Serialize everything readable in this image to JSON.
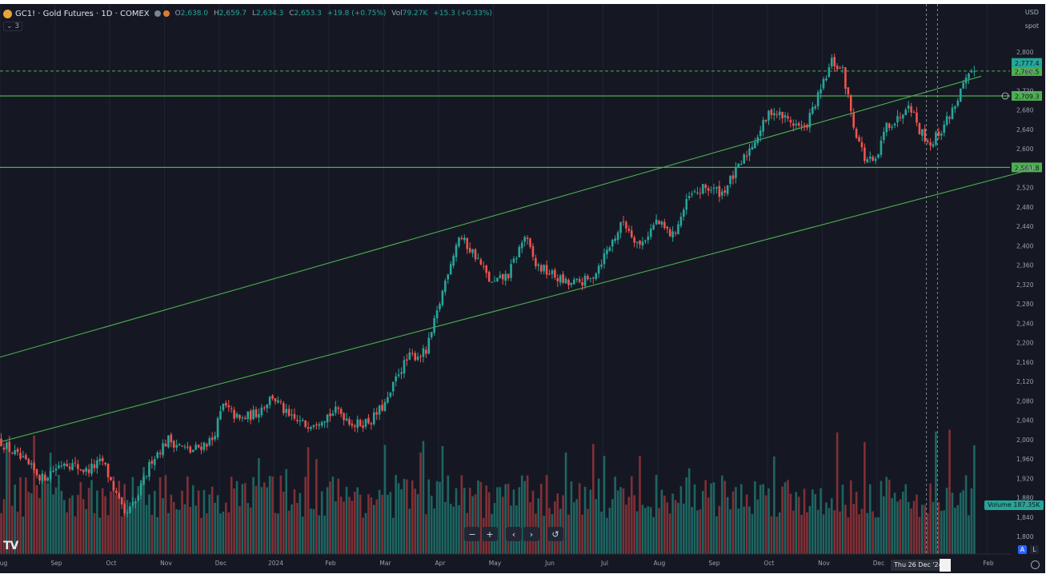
{
  "header": {
    "symbol": "GC1!",
    "title": "GC1! · Gold Futures · 1D · COMEX",
    "ohlc": {
      "o_label": "O",
      "o": "2,638.0",
      "h_label": "H",
      "h": "2,659.7",
      "l_label": "L",
      "l": "2,634.3",
      "c_label": "C",
      "c": "2,653.3",
      "chg": "+19.8 (+0.75%)",
      "vol_label": "Vol",
      "vol": "79.27K",
      "vol_chg": "+15.3 (+0.33%)"
    },
    "indicator_count": "3",
    "currency": "USD",
    "data_source": "spot"
  },
  "colors": {
    "bg": "#151823",
    "up": "#26a69a",
    "down": "#ef5350",
    "vol_up": "#1f6e68",
    "vol_down": "#8c3338",
    "trend": "#4caf50",
    "hline": "#4caf50",
    "axis_text": "#9aa0ad",
    "grid": "#1f2331"
  },
  "chart_data": {
    "type": "candlestick",
    "instrument": "Gold Futures",
    "timeframe": "1D",
    "ylim": [
      1780,
      2830
    ],
    "y_ticks": [
      1800,
      1840,
      1880,
      1920,
      1960,
      2000,
      2040,
      2080,
      2120,
      2160,
      2200,
      2240,
      2280,
      2320,
      2360,
      2400,
      2440,
      2480,
      2520,
      2560,
      2600,
      2640,
      2680,
      2720,
      2760,
      2800
    ],
    "x_ticks": [
      "Aug",
      "Sep",
      "Oct",
      "Nov",
      "Dec",
      "2024",
      "Feb",
      "Mar",
      "Apr",
      "May",
      "Jun",
      "Jul",
      "Aug",
      "Sep",
      "Oct",
      "Nov",
      "Dec",
      "Feb"
    ],
    "x_range_months": [
      0,
      18
    ],
    "x_tick_positions_months": [
      0,
      1,
      2,
      3,
      4,
      5,
      6,
      7,
      8,
      9,
      10,
      11,
      12,
      13,
      14,
      15,
      16,
      18
    ],
    "price_path": [
      [
        0.0,
        2000
      ],
      [
        0.3,
        1970
      ],
      [
        0.8,
        1920
      ],
      [
        1.2,
        1955
      ],
      [
        1.6,
        1935
      ],
      [
        1.9,
        1955
      ],
      [
        2.1,
        1900
      ],
      [
        2.3,
        1840
      ],
      [
        2.5,
        1870
      ],
      [
        2.8,
        1960
      ],
      [
        3.1,
        2000
      ],
      [
        3.5,
        1975
      ],
      [
        3.9,
        2000
      ],
      [
        4.1,
        2070
      ],
      [
        4.4,
        2040
      ],
      [
        4.7,
        2055
      ],
      [
        5.0,
        2090
      ],
      [
        5.3,
        2045
      ],
      [
        5.6,
        2030
      ],
      [
        5.9,
        2045
      ],
      [
        6.2,
        2060
      ],
      [
        6.5,
        2030
      ],
      [
        6.8,
        2040
      ],
      [
        7.1,
        2080
      ],
      [
        7.3,
        2140
      ],
      [
        7.5,
        2170
      ],
      [
        7.8,
        2180
      ],
      [
        8.0,
        2260
      ],
      [
        8.2,
        2350
      ],
      [
        8.4,
        2420
      ],
      [
        8.7,
        2380
      ],
      [
        9.0,
        2320
      ],
      [
        9.3,
        2340
      ],
      [
        9.6,
        2420
      ],
      [
        9.8,
        2360
      ],
      [
        10.1,
        2340
      ],
      [
        10.4,
        2320
      ],
      [
        10.8,
        2330
      ],
      [
        11.1,
        2390
      ],
      [
        11.4,
        2450
      ],
      [
        11.7,
        2400
      ],
      [
        12.0,
        2450
      ],
      [
        12.3,
        2420
      ],
      [
        12.6,
        2500
      ],
      [
        12.9,
        2520
      ],
      [
        13.2,
        2510
      ],
      [
        13.5,
        2560
      ],
      [
        13.8,
        2620
      ],
      [
        14.1,
        2680
      ],
      [
        14.4,
        2660
      ],
      [
        14.7,
        2640
      ],
      [
        15.0,
        2720
      ],
      [
        15.2,
        2780
      ],
      [
        15.4,
        2760
      ],
      [
        15.6,
        2650
      ],
      [
        15.8,
        2580
      ],
      [
        16.0,
        2570
      ],
      [
        16.2,
        2650
      ],
      [
        16.4,
        2660
      ],
      [
        16.6,
        2700
      ],
      [
        16.8,
        2640
      ],
      [
        17.0,
        2610
      ],
      [
        17.2,
        2640
      ],
      [
        17.4,
        2680
      ],
      [
        17.6,
        2730
      ],
      [
        17.8,
        2760
      ]
    ],
    "channel_upper": [
      [
        0.0,
        2170
      ],
      [
        17.9,
        2750
      ]
    ],
    "channel_lower": [
      [
        0.0,
        1995
      ],
      [
        18.9,
        2560
      ]
    ],
    "horizontal_levels": [
      {
        "price": 2760.5,
        "label": "2,760.5",
        "style": "dashed"
      },
      {
        "price": 2709.3,
        "label": "2,709.3",
        "style": "solid"
      },
      {
        "price": 2561.8,
        "label": "2,561.8",
        "style": "solid"
      }
    ],
    "last_price_label": "2,777.4",
    "last_price": 2777.4,
    "volume_label": "Volume",
    "volume_value": "187.35K",
    "crosshair_x_month": 16.9,
    "crosshair_x2_month": 17.1,
    "crosshair_date_label": "Thu 26 Dec '24"
  },
  "controls": {
    "zoom_out": "−",
    "zoom_in": "+",
    "scroll_left": "‹",
    "scroll_right": "›",
    "reset": "↺"
  },
  "bottom_right": {
    "auto": "A",
    "log": "L"
  },
  "logo_text": "TV"
}
